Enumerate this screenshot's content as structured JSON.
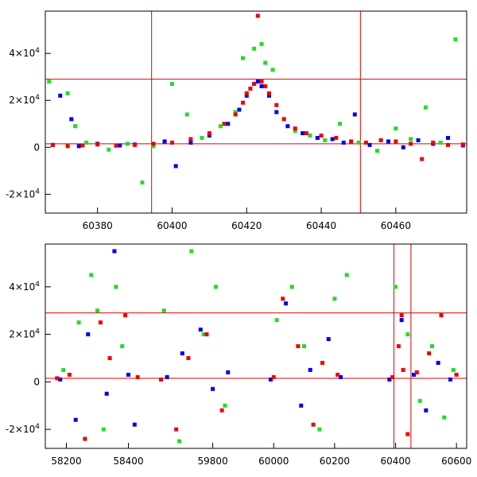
{
  "chart_data": [
    {
      "type": "scatter",
      "title": "",
      "xlabel": "",
      "ylabel": "",
      "xlim": [
        60366,
        60479
      ],
      "ylim": [
        -28000,
        58000
      ],
      "x_ticks": [
        60380,
        60400,
        60420,
        60440,
        60460
      ],
      "x_tick_labels": [
        "60380",
        "60400",
        "60420",
        "60440",
        "60460"
      ],
      "y_ticks": [
        -20000,
        0,
        20000,
        40000
      ],
      "y_tick_labels": [
        {
          "mant": "-2×10",
          "exp": "4"
        },
        {
          "mant": "0",
          "exp": ""
        },
        {
          "mant": "2×10",
          "exp": "4"
        },
        {
          "mant": "4×10",
          "exp": "4"
        }
      ],
      "hlines": [
        29000,
        1500
      ],
      "vlines": [
        60394.5,
        60450.5
      ],
      "reference_line_color": "#e00000",
      "grid": false,
      "legend": "none",
      "colors": {
        "blue": "#0000ee",
        "green": "#22dd22",
        "red": "#ee0000"
      },
      "series": [
        {
          "color": "#0000ee",
          "x": [
            60368,
            60370,
            60373,
            60375,
            60380,
            60386,
            60390,
            60398,
            60401,
            60405,
            60410,
            60415,
            60418,
            60420,
            60421,
            60422,
            60423,
            60424,
            60426,
            60428,
            60431,
            60435,
            60439,
            60443,
            60446,
            60449,
            60453,
            60458,
            60462,
            60466,
            60470,
            60474,
            60478
          ],
          "y": [
            1000,
            22000,
            12000,
            500,
            1500,
            800,
            1200,
            2500,
            -8000,
            2000,
            5000,
            10000,
            16000,
            22000,
            25000,
            27000,
            28000,
            26000,
            22000,
            15000,
            9000,
            6000,
            4000,
            3500,
            2000,
            14000,
            1000,
            2500,
            0,
            3000,
            1500,
            4000,
            800
          ]
        },
        {
          "color": "#22dd22",
          "x": [
            60367,
            60372,
            60374,
            60377,
            60383,
            60388,
            60392,
            60395,
            60400,
            60404,
            60408,
            60413,
            60417,
            60419,
            60422,
            60424,
            60425,
            60427,
            60430,
            60433,
            60437,
            60441,
            60445,
            60450,
            60455,
            60460,
            60464,
            60468,
            60472,
            60476
          ],
          "y": [
            28000,
            23000,
            9000,
            2000,
            -1000,
            1500,
            -15000,
            500,
            27000,
            14000,
            4000,
            9000,
            15000,
            38000,
            42000,
            44000,
            36000,
            33000,
            12000,
            7000,
            5000,
            3000,
            10000,
            2000,
            -1500,
            8000,
            3500,
            17000,
            2000,
            46000
          ]
        },
        {
          "color": "#ee0000",
          "x": [
            60368,
            60372,
            60376,
            60380,
            60385,
            60390,
            60395,
            60400,
            60405,
            60410,
            60414,
            60417,
            60419,
            60420,
            60421,
            60422,
            60423,
            60424,
            60425,
            60426,
            60428,
            60430,
            60433,
            60436,
            60440,
            60444,
            60448,
            60452,
            60456,
            60460,
            60464,
            60467,
            60470,
            60474,
            60478
          ],
          "y": [
            1000,
            500,
            800,
            1200,
            700,
            1000,
            1500,
            2000,
            3500,
            6000,
            10000,
            14000,
            19000,
            23000,
            25000,
            27000,
            56000,
            28000,
            26000,
            23000,
            18000,
            12000,
            8000,
            6000,
            5000,
            4000,
            2500,
            2000,
            3000,
            2500,
            1500,
            -5000,
            2000,
            1000,
            1200
          ]
        }
      ]
    },
    {
      "type": "scatter",
      "title": "",
      "xlabel": "",
      "ylabel": "",
      "x_segments": [
        {
          "xlim": [
            58150,
            58450
          ],
          "ticks": [
            58200,
            58400
          ],
          "tick_labels": [
            "58200",
            "58400"
          ]
        },
        {
          "xlim": [
            59600,
            60610
          ],
          "ticks": [
            59800,
            60000,
            60200,
            60400,
            60600
          ],
          "tick_labels": [
            "59800",
            "60000",
            "60200",
            "60400",
            "60600"
          ]
        }
      ],
      "ylim": [
        -28000,
        58000
      ],
      "y_ticks": [
        -20000,
        0,
        20000,
        40000
      ],
      "y_tick_labels": [
        {
          "mant": "-2×10",
          "exp": "4"
        },
        {
          "mant": "0",
          "exp": ""
        },
        {
          "mant": "2×10",
          "exp": "4"
        },
        {
          "mant": "4×10",
          "exp": "4"
        }
      ],
      "hlines": [
        29000,
        1500
      ],
      "vlines": [
        60394.5,
        60450.5
      ],
      "reference_line_color": "#e00000",
      "grid": false,
      "legend": "none",
      "series": [
        {
          "color": "#0000ee",
          "x": [
            58180,
            58230,
            58270,
            58330,
            58355,
            58400,
            58420,
            59650,
            59700,
            59760,
            59800,
            59850,
            59990,
            60040,
            60090,
            60120,
            60180,
            60220,
            60380,
            60420,
            60460,
            60500,
            60540,
            60580
          ],
          "y": [
            1000,
            -16000,
            20000,
            -5000,
            55000,
            3000,
            -18000,
            2000,
            12000,
            22000,
            -3000,
            4000,
            1000,
            33000,
            -10000,
            5000,
            18000,
            2000,
            1000,
            26000,
            3000,
            -12000,
            8000,
            1000
          ]
        },
        {
          "color": "#22dd22",
          "x": [
            58190,
            58240,
            58280,
            58300,
            58320,
            58360,
            58380,
            59640,
            59690,
            59730,
            59770,
            59810,
            59840,
            60010,
            60060,
            60100,
            60150,
            60200,
            60240,
            60400,
            60440,
            60480,
            60520,
            60560,
            60590
          ],
          "y": [
            5000,
            25000,
            45000,
            30000,
            -20000,
            40000,
            15000,
            30000,
            -25000,
            55000,
            20000,
            40000,
            -10000,
            26000,
            40000,
            15000,
            -20000,
            35000,
            45000,
            40000,
            20000,
            -8000,
            15000,
            -15000,
            5000
          ]
        },
        {
          "color": "#ee0000",
          "x": [
            58170,
            58210,
            58260,
            58310,
            58340,
            58390,
            58430,
            59630,
            59680,
            59720,
            59780,
            59830,
            60000,
            60030,
            60080,
            60130,
            60160,
            60210,
            60390,
            60410,
            60420,
            60425,
            60440,
            60470,
            60510,
            60550,
            60600
          ],
          "y": [
            1500,
            3000,
            -24000,
            25000,
            10000,
            28000,
            2000,
            1000,
            -20000,
            10000,
            20000,
            -12000,
            2000,
            35000,
            15000,
            -18000,
            8000,
            3000,
            2000,
            15000,
            28000,
            5000,
            -22000,
            4000,
            12000,
            28000,
            3000
          ]
        }
      ]
    }
  ]
}
